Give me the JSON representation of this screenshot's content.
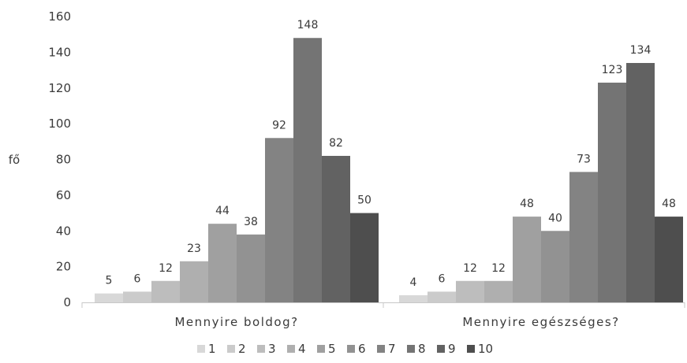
{
  "chart_data": {
    "type": "bar",
    "title": "",
    "xlabel": "",
    "ylabel": "fő",
    "ylim": [
      0,
      160
    ],
    "yticks": [
      0,
      20,
      40,
      60,
      80,
      100,
      120,
      140,
      160
    ],
    "grid": false,
    "legend_position": "bottom",
    "categories": [
      "Mennyire boldog?",
      "Mennyire egészséges?"
    ],
    "series": [
      {
        "name": "1",
        "values": [
          5,
          4
        ],
        "color": "#d8d8d8"
      },
      {
        "name": "2",
        "values": [
          6,
          6
        ],
        "color": "#cbcbcb"
      },
      {
        "name": "3",
        "values": [
          12,
          12
        ],
        "color": "#bdbdbd"
      },
      {
        "name": "4",
        "values": [
          23,
          12
        ],
        "color": "#afafaf"
      },
      {
        "name": "5",
        "values": [
          44,
          48
        ],
        "color": "#a0a0a0"
      },
      {
        "name": "6",
        "values": [
          38,
          40
        ],
        "color": "#929292"
      },
      {
        "name": "7",
        "values": [
          92,
          73
        ],
        "color": "#838383"
      },
      {
        "name": "8",
        "values": [
          148,
          123
        ],
        "color": "#747474"
      },
      {
        "name": "9",
        "values": [
          82,
          134
        ],
        "color": "#626262"
      },
      {
        "name": "10",
        "values": [
          50,
          48
        ],
        "color": "#4e4e4e"
      }
    ]
  }
}
